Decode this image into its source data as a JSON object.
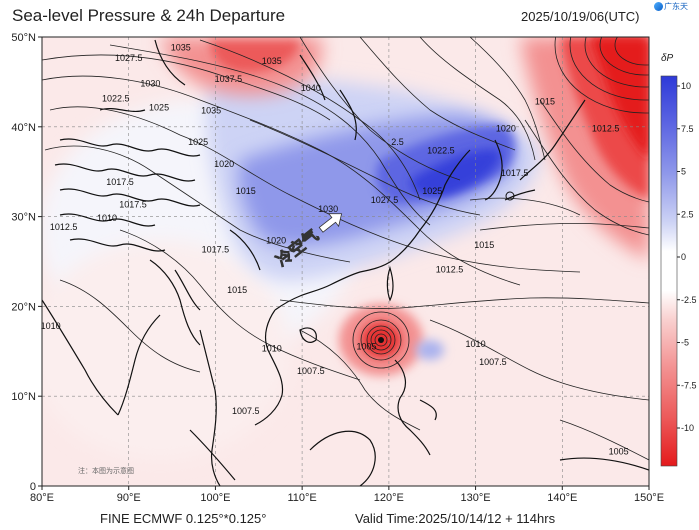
{
  "title": "Sea-level Pressure & 24h Departure",
  "datetime": "2025/10/19/06(UTC)",
  "logo_text": "广东天",
  "footer": {
    "model": "FINE ECMWF 0.125°*0.125°",
    "valid": "Valid Time:2025/10/14/12 + 114hrs"
  },
  "note": "注：本图为示意图",
  "annotation": "冷空气",
  "colors": {
    "strong_high": "#e41a1c",
    "mid_red": "#f39191",
    "light_red": "#f9d0cf",
    "neutral": "#ffffff",
    "light_blue": "#cdd3f5",
    "mid_blue": "#8f98ea",
    "strong_blue": "#2e3ad8",
    "coast": "#111111",
    "isobar": "#222222"
  },
  "map": {
    "lon_range": [
      80,
      150
    ],
    "lat_range": [
      0,
      50
    ],
    "lon_ticks": [
      "80°E",
      "90°E",
      "100°E",
      "110°E",
      "120°E",
      "130°E",
      "140°E",
      "150°E"
    ],
    "lat_ticks": [
      "0",
      "10°N",
      "20°N",
      "30°N",
      "40°N",
      "50°N"
    ],
    "typhoon_center": {
      "lon": 119.5,
      "lat": 17.2,
      "label": "1005"
    },
    "isobar_labels": [
      {
        "text": "1027.5",
        "lon": 90,
        "lat": 47.3
      },
      {
        "text": "1035",
        "lon": 96,
        "lat": 48.5
      },
      {
        "text": "1035",
        "lon": 106.5,
        "lat": 47
      },
      {
        "text": "1030",
        "lon": 92.5,
        "lat": 44.5
      },
      {
        "text": "1037.5",
        "lon": 101.5,
        "lat": 45
      },
      {
        "text": "1040",
        "lon": 111,
        "lat": 44
      },
      {
        "text": "1022.5",
        "lon": 88.5,
        "lat": 42.8
      },
      {
        "text": "1025",
        "lon": 93.5,
        "lat": 41.8
      },
      {
        "text": "1035",
        "lon": 99.5,
        "lat": 41.5
      },
      {
        "text": "1025",
        "lon": 98,
        "lat": 38
      },
      {
        "text": "1020",
        "lon": 101,
        "lat": 35.5
      },
      {
        "text": "1017.5",
        "lon": 89,
        "lat": 33.5
      },
      {
        "text": "1015",
        "lon": 103.5,
        "lat": 32.5
      },
      {
        "text": "1017.5",
        "lon": 90.5,
        "lat": 31
      },
      {
        "text": "1012.5",
        "lon": 82.5,
        "lat": 28.5
      },
      {
        "text": "1017.5",
        "lon": 100,
        "lat": 26
      },
      {
        "text": "1020",
        "lon": 107,
        "lat": 27
      },
      {
        "text": "1030",
        "lon": 113,
        "lat": 30.5
      },
      {
        "text": "1027.5",
        "lon": 119.5,
        "lat": 31.5
      },
      {
        "text": "1025",
        "lon": 125,
        "lat": 32.5
      },
      {
        "text": "1022.5",
        "lon": 126,
        "lat": 37
      },
      {
        "text": "2.5",
        "lon": 121,
        "lat": 38
      },
      {
        "text": "1020",
        "lon": 133.5,
        "lat": 39.5
      },
      {
        "text": "1015",
        "lon": 138,
        "lat": 42.5
      },
      {
        "text": "1017.5",
        "lon": 134.5,
        "lat": 34.5
      },
      {
        "text": "1012.5",
        "lon": 145,
        "lat": 39.5
      },
      {
        "text": "1015",
        "lon": 131,
        "lat": 26.5
      },
      {
        "text": "1012.5",
        "lon": 127,
        "lat": 23.8
      },
      {
        "text": "1015",
        "lon": 102.5,
        "lat": 21.5
      },
      {
        "text": "1010",
        "lon": 130,
        "lat": 15.5
      },
      {
        "text": "1007.5",
        "lon": 132,
        "lat": 13.5
      },
      {
        "text": "1010",
        "lon": 81,
        "lat": 17.5
      },
      {
        "text": "1010",
        "lon": 106.5,
        "lat": 15
      },
      {
        "text": "1007.5",
        "lon": 111,
        "lat": 12.5
      },
      {
        "text": "1007.5",
        "lon": 103.5,
        "lat": 8
      },
      {
        "text": "1005",
        "lon": 146.5,
        "lat": 3.5
      },
      {
        "text": "1010",
        "lon": 87.5,
        "lat": 29.5
      }
    ]
  },
  "colorbar": {
    "title": "δP",
    "ticks": [
      "10",
      "7.5",
      "5",
      "2.5",
      "0",
      "-2.5",
      "-5",
      "-7.5",
      "-10"
    ]
  }
}
